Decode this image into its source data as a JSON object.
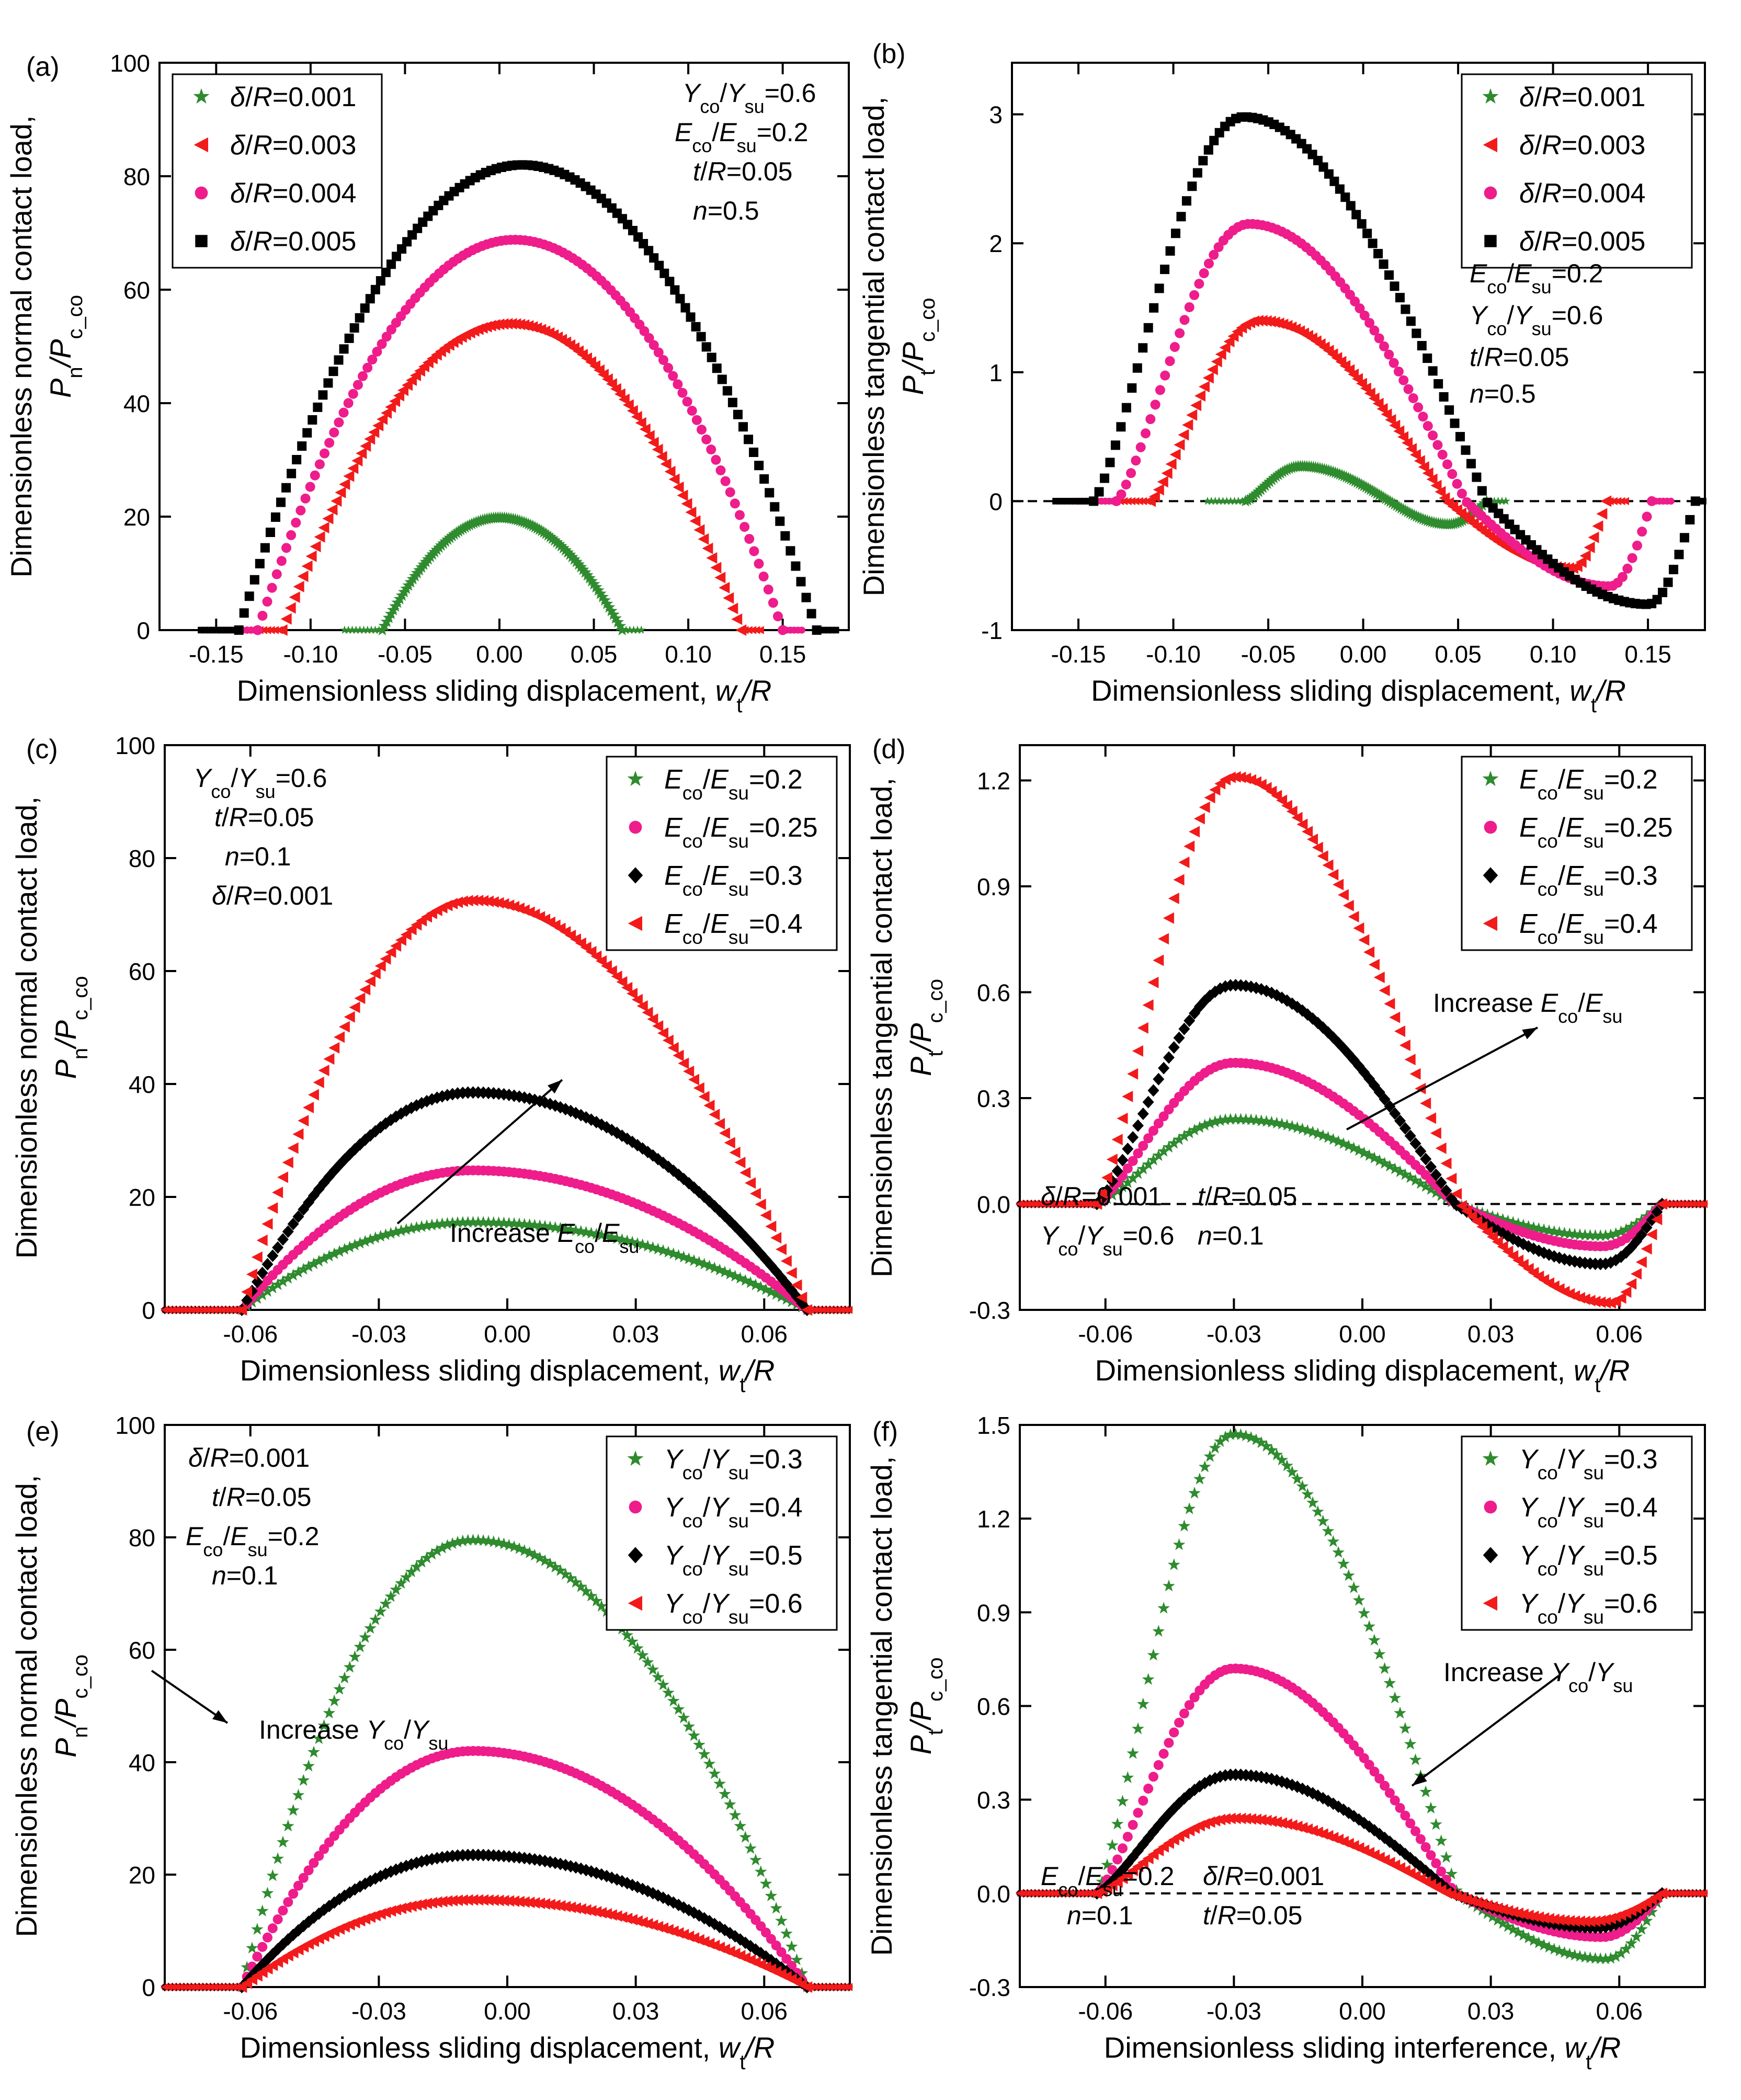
{
  "figure": "Six-panel figure of dimensionless contact loads vs sliding displacement",
  "colors": {
    "green": "#2e8b2e",
    "red": "#f21a1a",
    "magenta": "#ee1d8b",
    "black": "#000000"
  },
  "chart_data": [
    {
      "id": "a",
      "panel_label": "(a)",
      "type": "scatter",
      "xlabel": "Dimensionless sliding displacement, ",
      "xlabel_var": "w_t/R",
      "ylabel_top": "Dimensionless normal contact load,",
      "ylabel_bottom": "P_n/P_c_co",
      "xlim": [
        -0.18,
        0.185
      ],
      "ylim": [
        0,
        100
      ],
      "xticks": [
        -0.15,
        -0.1,
        -0.05,
        0.0,
        0.05,
        0.1,
        0.15
      ],
      "xtick_labels": [
        "-0.15",
        "-0.10",
        "-0.05",
        "0.00",
        "0.05",
        "0.10",
        "0.15"
      ],
      "yticks": [
        0,
        20,
        40,
        60,
        80,
        100
      ],
      "ytick_labels": [
        "0",
        "20",
        "40",
        "60",
        "80",
        "100"
      ],
      "zero_line": false,
      "legend": {
        "position": "top-left",
        "entries": [
          "δ/R=0.001",
          "δ/R=0.003",
          "δ/R=0.004",
          "δ/R=0.005"
        ]
      },
      "annotations": [
        "Y_co/Y_su=0.6",
        "E_co/E_su=0.2",
        "t/R=0.05",
        "n=0.5"
      ],
      "series": [
        {
          "name": "δ/R=0.001",
          "marker": "star",
          "color": "#2e8b2e",
          "shape": "arch",
          "x_start": -0.062,
          "x_end": 0.065,
          "peak_x": 0.0,
          "peak": 19.8,
          "baseline": [
            -0.125,
            0.11
          ]
        },
        {
          "name": "δ/R=0.003",
          "marker": "triangle-left",
          "color": "#f21a1a",
          "shape": "arch",
          "x_start": -0.115,
          "x_end": 0.128,
          "peak_x": 0.005,
          "peak": 54,
          "baseline": [
            -0.18,
            0.14
          ]
        },
        {
          "name": "δ/R=0.004",
          "marker": "circle",
          "color": "#ee1d8b",
          "shape": "arch",
          "x_start": -0.128,
          "x_end": 0.15,
          "peak_x": 0.008,
          "peak": 68.8,
          "baseline": [
            -0.13,
            0.155
          ]
        },
        {
          "name": "δ/R=0.005",
          "marker": "square",
          "color": "#000000",
          "shape": "arch",
          "x_start": -0.138,
          "x_end": 0.168,
          "peak_x": 0.012,
          "peak": 82,
          "baseline": [
            -0.18,
            0.178
          ]
        }
      ]
    },
    {
      "id": "b",
      "panel_label": "(b)",
      "type": "scatter",
      "xlabel": "Dimensionless sliding displacement, ",
      "xlabel_var": "w_t/R",
      "ylabel_top": "Dimensionless tangential contact load,",
      "ylabel_bottom": "P_t/P_c_co",
      "xlim": [
        -0.185,
        0.18
      ],
      "ylim": [
        -1,
        3.4
      ],
      "xticks": [
        -0.15,
        -0.1,
        -0.05,
        0.0,
        0.05,
        0.1,
        0.15
      ],
      "xtick_labels": [
        "-0.15",
        "-0.10",
        "-0.05",
        "0.00",
        "0.05",
        "0.10",
        "0.15"
      ],
      "yticks": [
        -1,
        0,
        1,
        2,
        3
      ],
      "ytick_labels": [
        "-1",
        "0",
        "1",
        "2",
        "3"
      ],
      "zero_line": true,
      "legend": {
        "position": "top-right",
        "entries": [
          "δ/R=0.001",
          "δ/R=0.003",
          "δ/R=0.004",
          "δ/R=0.005"
        ]
      },
      "annotations": [
        "E_co/E_su=0.2",
        "Y_co/Y_su=0.6",
        "t/R=0.05",
        "n=0.5"
      ],
      "series": [
        {
          "name": "δ/R=0.001",
          "marker": "star",
          "color": "#2e8b2e",
          "shape": "wave",
          "x_start": -0.062,
          "x_end": 0.065,
          "peak_x": -0.033,
          "peak": 0.27,
          "trough_x": 0.045,
          "trough": -0.18
        },
        {
          "name": "δ/R=0.003",
          "marker": "triangle-left",
          "color": "#f21a1a",
          "shape": "wave",
          "x_start": -0.112,
          "x_end": 0.128,
          "peak_x": -0.055,
          "peak": 1.4,
          "trough_x": 0.11,
          "trough": -0.52
        },
        {
          "name": "δ/R=0.004",
          "marker": "circle",
          "color": "#ee1d8b",
          "shape": "wave",
          "x_start": -0.13,
          "x_end": 0.152,
          "peak_x": -0.06,
          "peak": 2.15,
          "trough_x": 0.13,
          "trough": -0.66
        },
        {
          "name": "δ/R=0.005",
          "marker": "square",
          "color": "#000000",
          "shape": "wave",
          "x_start": -0.142,
          "x_end": 0.175,
          "peak_x": -0.063,
          "peak": 2.98,
          "trough_x": 0.15,
          "trough": -0.8
        }
      ]
    },
    {
      "id": "c",
      "panel_label": "(c)",
      "type": "scatter",
      "xlabel": "Dimensionless sliding displacement, ",
      "xlabel_var": "w_t/R",
      "ylabel_top": "Dimensionless normal contact load,",
      "ylabel_bottom": "P_n/P_c_co",
      "xlim": [
        -0.08,
        0.08
      ],
      "ylim": [
        0,
        100
      ],
      "xticks": [
        -0.06,
        -0.03,
        0.0,
        0.03,
        0.06
      ],
      "xtick_labels": [
        "-0.06",
        "-0.03",
        "0.00",
        "0.03",
        "0.06"
      ],
      "yticks": [
        0,
        20,
        40,
        60,
        80,
        100
      ],
      "ytick_labels": [
        "0",
        "20",
        "40",
        "60",
        "80",
        "100"
      ],
      "zero_line": false,
      "legend": {
        "position": "top-right",
        "entries": [
          "E_co/E_su=0.2",
          "E_co/E_su=0.25",
          "E_co/E_su=0.3",
          "E_co/E_su=0.4"
        ]
      },
      "annotations": [
        "Y_co/Y_su=0.6",
        "t/R=0.05",
        "n=0.1",
        "δ/R=0.001"
      ],
      "arrow_label": "Increase E_co/E_su",
      "series": [
        {
          "name": "E_co/E_su=0.2",
          "marker": "star",
          "color": "#2e8b2e",
          "shape": "arch",
          "x_start": -0.062,
          "x_end": 0.07,
          "peak_x": -0.008,
          "peak": 15.5
        },
        {
          "name": "E_co/E_su=0.25",
          "marker": "circle",
          "color": "#ee1d8b",
          "shape": "arch",
          "x_start": -0.062,
          "x_end": 0.07,
          "peak_x": -0.008,
          "peak": 24.7
        },
        {
          "name": "E_co/E_su=0.3",
          "marker": "diamond",
          "color": "#000000",
          "shape": "arch",
          "x_start": -0.062,
          "x_end": 0.07,
          "peak_x": -0.008,
          "peak": 38.5
        },
        {
          "name": "E_co/E_su=0.4",
          "marker": "triangle-left",
          "color": "#f21a1a",
          "shape": "arch",
          "x_start": -0.062,
          "x_end": 0.07,
          "peak_x": -0.008,
          "peak": 72.5
        }
      ]
    },
    {
      "id": "d",
      "panel_label": "(d)",
      "type": "scatter",
      "xlabel": "Dimensionless sliding displacement, ",
      "xlabel_var": "w_t/R",
      "ylabel_top": "Dimensionless tangential contact load,",
      "ylabel_bottom": "P_t/P_c_co",
      "xlim": [
        -0.08,
        0.08
      ],
      "ylim": [
        -0.3,
        1.3
      ],
      "xticks": [
        -0.06,
        -0.03,
        0.0,
        0.03,
        0.06
      ],
      "xtick_labels": [
        "-0.06",
        "-0.03",
        "0.00",
        "0.03",
        "0.06"
      ],
      "yticks": [
        -0.3,
        0.0,
        0.3,
        0.6,
        0.9,
        1.2
      ],
      "ytick_labels": [
        "-0.3",
        "0.0",
        "0.3",
        "0.6",
        "0.9",
        "1.2"
      ],
      "zero_line": true,
      "legend": {
        "position": "top-right",
        "entries": [
          "E_co/E_su=0.2",
          "E_co/E_su=0.25",
          "E_co/E_su=0.3",
          "E_co/E_su=0.4"
        ]
      },
      "annotations": [
        "δ/R=0.001",
        "t/R=0.05",
        "Y_co/Y_su=0.6",
        "n=0.1"
      ],
      "arrow_label": "Increase E_co/E_su",
      "series": [
        {
          "name": "E_co/E_su=0.2",
          "marker": "star",
          "color": "#2e8b2e",
          "shape": "wave",
          "x_start": -0.062,
          "x_end": 0.07,
          "peak_x": -0.03,
          "peak": 0.24,
          "trough_x": 0.056,
          "trough": -0.09
        },
        {
          "name": "E_co/E_su=0.25",
          "marker": "circle",
          "color": "#ee1d8b",
          "shape": "wave",
          "x_start": -0.062,
          "x_end": 0.07,
          "peak_x": -0.03,
          "peak": 0.4,
          "trough_x": 0.056,
          "trough": -0.12
        },
        {
          "name": "E_co/E_su=0.3",
          "marker": "diamond",
          "color": "#000000",
          "shape": "wave",
          "x_start": -0.062,
          "x_end": 0.07,
          "peak_x": -0.03,
          "peak": 0.62,
          "trough_x": 0.056,
          "trough": -0.17
        },
        {
          "name": "E_co/E_su=0.4",
          "marker": "triangle-left",
          "color": "#f21a1a",
          "shape": "wave",
          "x_start": -0.062,
          "x_end": 0.07,
          "peak_x": -0.03,
          "peak": 1.21,
          "trough_x": 0.058,
          "trough": -0.28
        }
      ]
    },
    {
      "id": "e",
      "panel_label": "(e)",
      "type": "scatter",
      "xlabel": "Dimensionless sliding displacement, ",
      "xlabel_var": "w_t/R",
      "ylabel_top": "Dimensionless normal contact load,",
      "ylabel_bottom": "P_n/P_c_co",
      "xlim": [
        -0.08,
        0.08
      ],
      "ylim": [
        0,
        100
      ],
      "xticks": [
        -0.06,
        -0.03,
        0.0,
        0.03,
        0.06
      ],
      "xtick_labels": [
        "-0.06",
        "-0.03",
        "0.00",
        "0.03",
        "0.06"
      ],
      "yticks": [
        0,
        20,
        40,
        60,
        80,
        100
      ],
      "ytick_labels": [
        "0",
        "20",
        "40",
        "60",
        "80",
        "100"
      ],
      "zero_line": false,
      "legend": {
        "position": "top-right",
        "entries": [
          "Y_co/Y_su=0.3",
          "Y_co/Y_su=0.4",
          "Y_co/Y_su=0.5",
          "Y_co/Y_su=0.6"
        ]
      },
      "annotations": [
        "δ/R=0.001",
        "t/R=0.05",
        "E_co/E_su=0.2",
        "n=0.1"
      ],
      "arrow_label": "Increase Y_co/Y_su",
      "series": [
        {
          "name": "Y_co/Y_su=0.3",
          "marker": "star",
          "color": "#2e8b2e",
          "shape": "arch",
          "x_start": -0.062,
          "x_end": 0.07,
          "peak_x": -0.008,
          "peak": 79.5
        },
        {
          "name": "Y_co/Y_su=0.4",
          "marker": "circle",
          "color": "#ee1d8b",
          "shape": "arch",
          "x_start": -0.062,
          "x_end": 0.07,
          "peak_x": -0.008,
          "peak": 42
        },
        {
          "name": "Y_co/Y_su=0.5",
          "marker": "diamond",
          "color": "#000000",
          "shape": "arch",
          "x_start": -0.062,
          "x_end": 0.07,
          "peak_x": -0.008,
          "peak": 23.5
        },
        {
          "name": "Y_co/Y_su=0.6",
          "marker": "triangle-left",
          "color": "#f21a1a",
          "shape": "arch",
          "x_start": -0.062,
          "x_end": 0.07,
          "peak_x": -0.008,
          "peak": 15.5
        }
      ]
    },
    {
      "id": "f",
      "panel_label": "(f)",
      "type": "scatter",
      "xlabel": "Dimensionless sliding interference, ",
      "xlabel_var": "w_t/R",
      "ylabel_top": "Dimensionless tangential contact load,",
      "ylabel_bottom": "P_t/P_c_co",
      "xlim": [
        -0.08,
        0.08
      ],
      "ylim": [
        -0.3,
        1.5
      ],
      "xticks": [
        -0.06,
        -0.03,
        0.0,
        0.03,
        0.06
      ],
      "xtick_labels": [
        "-0.06",
        "-0.03",
        "0.00",
        "0.03",
        "0.06"
      ],
      "yticks": [
        -0.3,
        0.0,
        0.3,
        0.6,
        0.9,
        1.2,
        1.5
      ],
      "ytick_labels": [
        "-0.3",
        "0.0",
        "0.3",
        "0.6",
        "0.9",
        "1.2",
        "1.5"
      ],
      "zero_line": true,
      "legend": {
        "position": "top-right",
        "entries": [
          "Y_co/Y_su=0.3",
          "Y_co/Y_su=0.4",
          "Y_co/Y_su=0.5",
          "Y_co/Y_su=0.6"
        ]
      },
      "annotations": [
        "E_co/E_su=0.2",
        "δ/R=0.001",
        "n=0.1",
        "t/R=0.05"
      ],
      "arrow_label": "Increase Y_co/Y_su",
      "series": [
        {
          "name": "Y_co/Y_su=0.3",
          "marker": "star",
          "color": "#2e8b2e",
          "shape": "wave",
          "x_start": -0.062,
          "x_end": 0.07,
          "peak_x": -0.03,
          "peak": 1.47,
          "trough_x": 0.057,
          "trough": -0.21
        },
        {
          "name": "Y_co/Y_su=0.4",
          "marker": "circle",
          "color": "#ee1d8b",
          "shape": "wave",
          "x_start": -0.062,
          "x_end": 0.07,
          "peak_x": -0.03,
          "peak": 0.72,
          "trough_x": 0.056,
          "trough": -0.14
        },
        {
          "name": "Y_co/Y_su=0.5",
          "marker": "diamond",
          "color": "#000000",
          "shape": "wave",
          "x_start": -0.062,
          "x_end": 0.07,
          "peak_x": -0.03,
          "peak": 0.38,
          "trough_x": 0.055,
          "trough": -0.11
        },
        {
          "name": "Y_co/Y_su=0.6",
          "marker": "triangle-left",
          "color": "#f21a1a",
          "shape": "wave",
          "x_start": -0.062,
          "x_end": 0.07,
          "peak_x": -0.03,
          "peak": 0.24,
          "trough_x": 0.053,
          "trough": -0.09
        }
      ]
    }
  ]
}
